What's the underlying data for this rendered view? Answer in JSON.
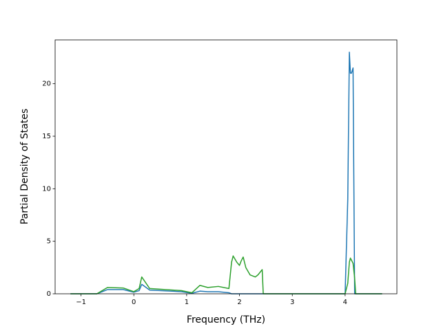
{
  "chart_data": {
    "type": "line",
    "x_label": "Frequency (THz)",
    "y_label": "Partial Density of States",
    "x": [
      -1.2,
      -0.7,
      -0.5,
      -0.2,
      0.0,
      0.1,
      0.15,
      0.3,
      0.9,
      1.1,
      1.25,
      1.4,
      1.6,
      1.8,
      1.85,
      1.88,
      1.95,
      2.0,
      2.03,
      2.07,
      2.12,
      2.2,
      2.3,
      2.35,
      2.43,
      2.45,
      4.0,
      4.05,
      4.08,
      4.1,
      4.12,
      4.15,
      4.18,
      4.2,
      4.7
    ],
    "series": [
      {
        "color": "#1f77b4",
        "values": [
          0,
          0,
          0.4,
          0.4,
          0.15,
          0.3,
          0.9,
          0.35,
          0.2,
          0.05,
          0.25,
          0.2,
          0.2,
          0.1,
          0,
          0,
          0,
          0,
          0,
          0,
          0,
          0,
          0,
          0,
          0,
          0,
          0,
          9,
          23,
          21,
          21,
          21.5,
          0,
          0,
          0
        ]
      },
      {
        "color": "#2ca02c",
        "values": [
          0,
          0,
          0.6,
          0.55,
          0.2,
          0.5,
          1.6,
          0.5,
          0.3,
          0.1,
          0.8,
          0.6,
          0.7,
          0.5,
          3.0,
          3.6,
          3.0,
          2.7,
          3.1,
          3.5,
          2.5,
          1.8,
          1.6,
          1.8,
          2.3,
          0,
          0,
          1.0,
          3.0,
          3.4,
          3.2,
          2.9,
          1.5,
          0,
          0
        ]
      }
    ],
    "xlim": [
      -1.49,
      4.98
    ],
    "ylim": [
      0,
      24.17
    ],
    "xticks": [
      {
        "value": -1,
        "label": "−1"
      },
      0,
      1,
      2,
      3,
      4
    ],
    "yticks": [
      0,
      5,
      10,
      15,
      20
    ],
    "grid": false
  }
}
